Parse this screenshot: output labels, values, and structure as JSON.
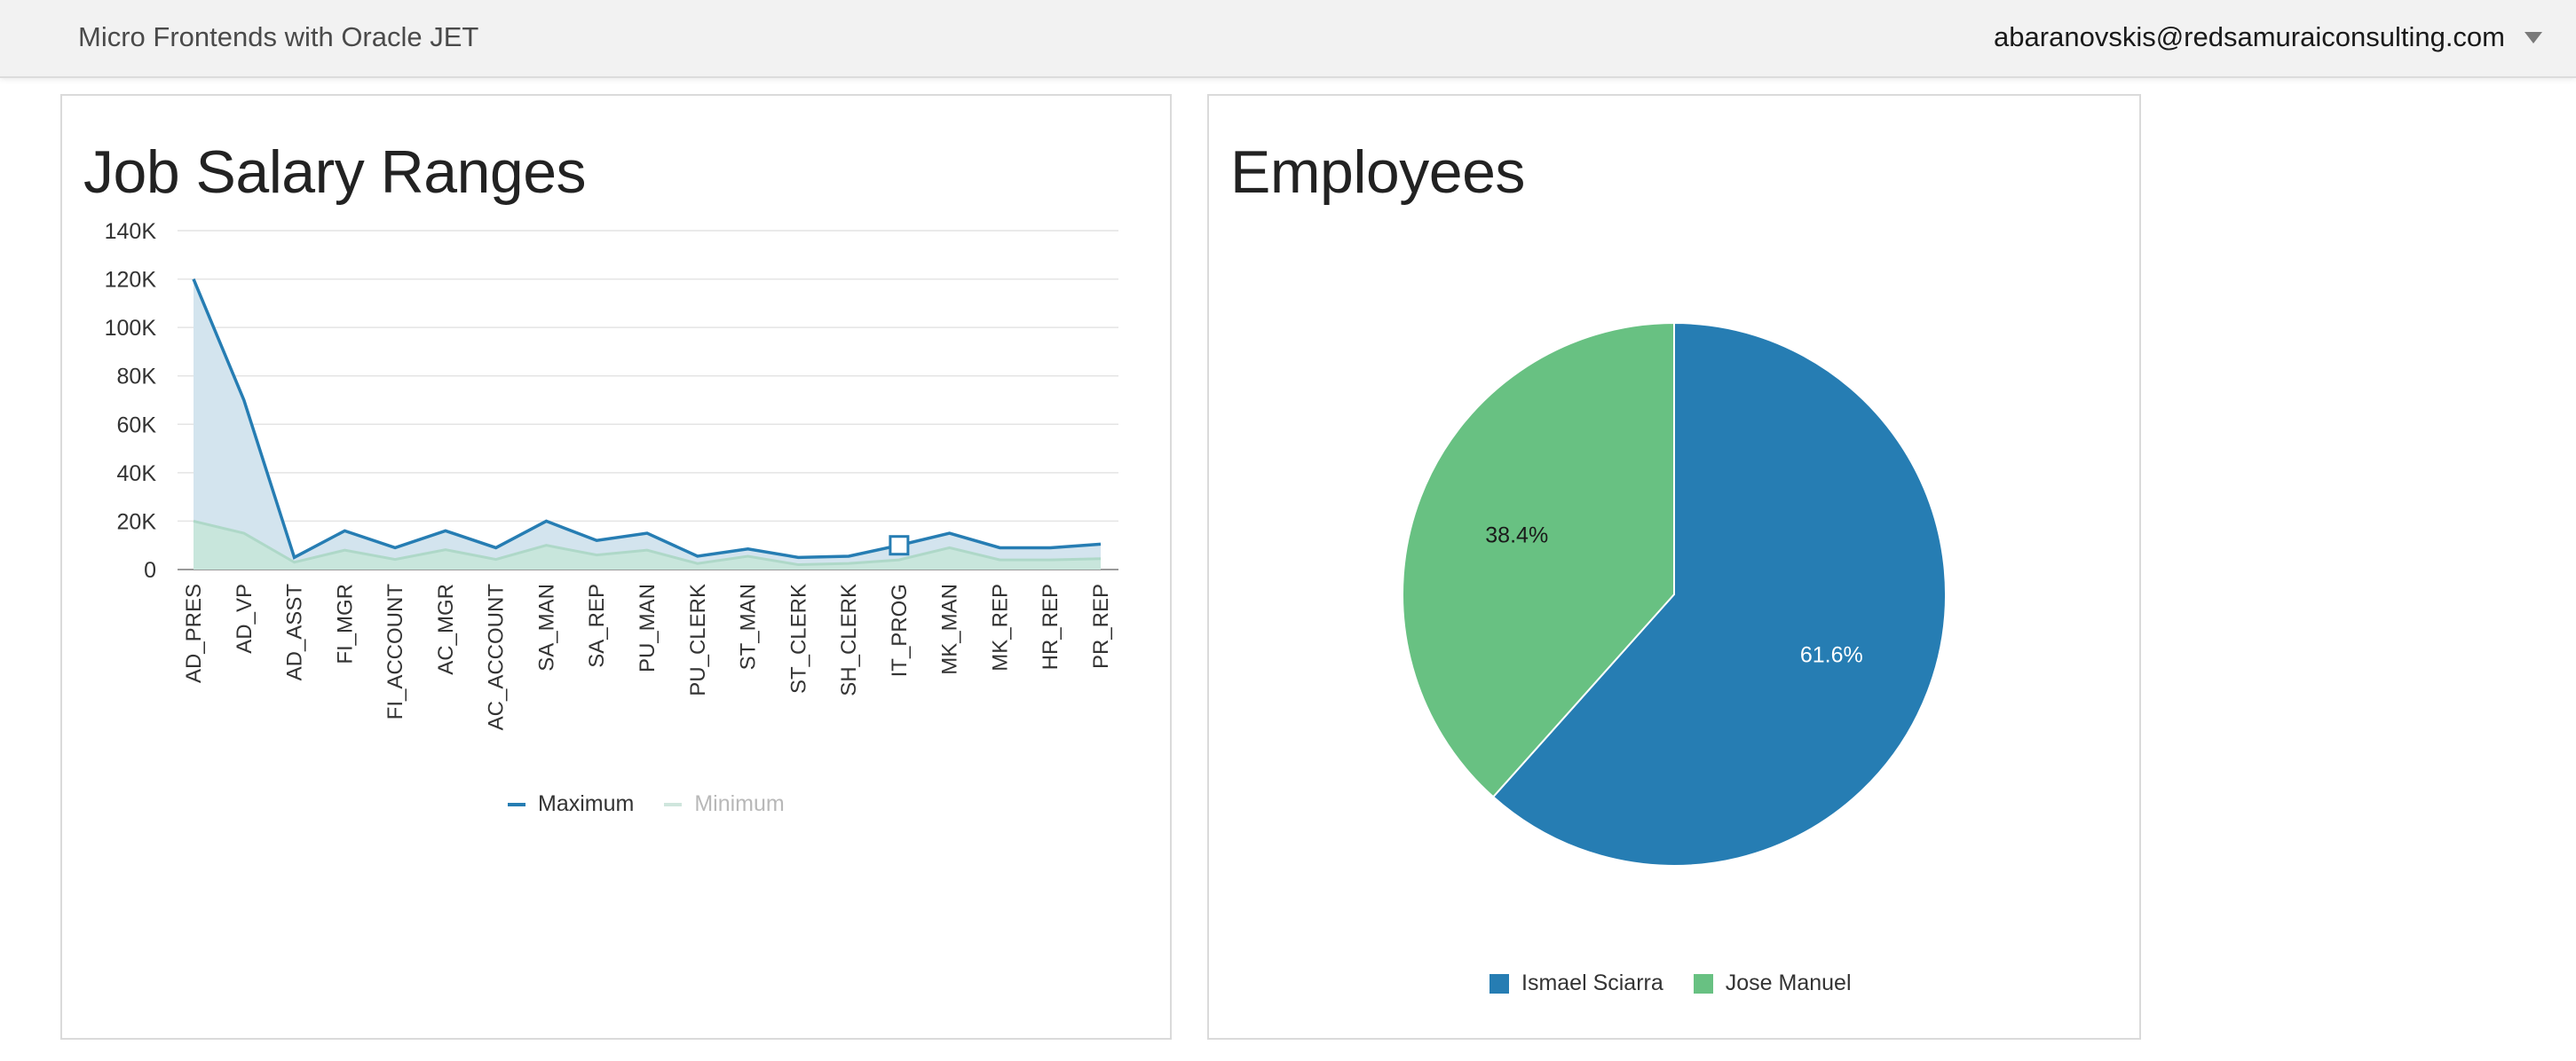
{
  "header": {
    "app_title": "Micro Frontends with Oracle JET",
    "user_email": "abaranovskis@redsamuraiconsulting.com"
  },
  "colors": {
    "maximum": "#267db3",
    "minimum": "#aed8c8",
    "area_fill": "#d3e4ee",
    "min_fill": "#c8e6dc",
    "pie_blue": "#267db3",
    "pie_green": "#68c182",
    "grid": "#e4e4e4"
  },
  "salary_panel": {
    "title": "Job Salary Ranges"
  },
  "employees_panel": {
    "title": "Employees"
  },
  "chart_data": [
    {
      "type": "area",
      "title": "Job Salary Ranges",
      "categories": [
        "AD_PRES",
        "AD_VP",
        "AD_ASST",
        "FI_MGR",
        "FI_ACCOUNT",
        "AC_MGR",
        "AC_ACCOUNT",
        "SA_MAN",
        "SA_REP",
        "PU_MAN",
        "PU_CLERK",
        "ST_MAN",
        "ST_CLERK",
        "SH_CLERK",
        "IT_PROG",
        "MK_MAN",
        "MK_REP",
        "HR_REP",
        "PR_REP"
      ],
      "series": [
        {
          "name": "Maximum",
          "values": [
            120000,
            70000,
            5000,
            16000,
            9000,
            16000,
            9000,
            20000,
            12000,
            15000,
            5500,
            8500,
            5000,
            5500,
            10000,
            15000,
            9000,
            9000,
            10500
          ]
        },
        {
          "name": "Minimum",
          "values": [
            20000,
            15000,
            3000,
            8000,
            4200,
            8200,
            4200,
            10000,
            6000,
            8000,
            2500,
            5500,
            2000,
            2500,
            4000,
            9000,
            4000,
            4000,
            4500
          ]
        }
      ],
      "ylim": [
        0,
        140000
      ],
      "y_ticks": [
        "0",
        "20K",
        "40K",
        "60K",
        "80K",
        "100K",
        "120K",
        "140K"
      ],
      "y_tick_values": [
        0,
        20000,
        40000,
        60000,
        80000,
        100000,
        120000,
        140000
      ],
      "selected_category": "IT_PROG",
      "legend": [
        "Maximum",
        "Minimum"
      ],
      "legend_position": "bottom",
      "grid": true
    },
    {
      "type": "pie",
      "title": "Employees",
      "slices": [
        {
          "name": "Ismael Sciarra",
          "value": 61.6,
          "label": "61.6%"
        },
        {
          "name": "Jose Manuel",
          "value": 38.4,
          "label": "38.4%"
        }
      ],
      "legend_position": "bottom"
    }
  ]
}
